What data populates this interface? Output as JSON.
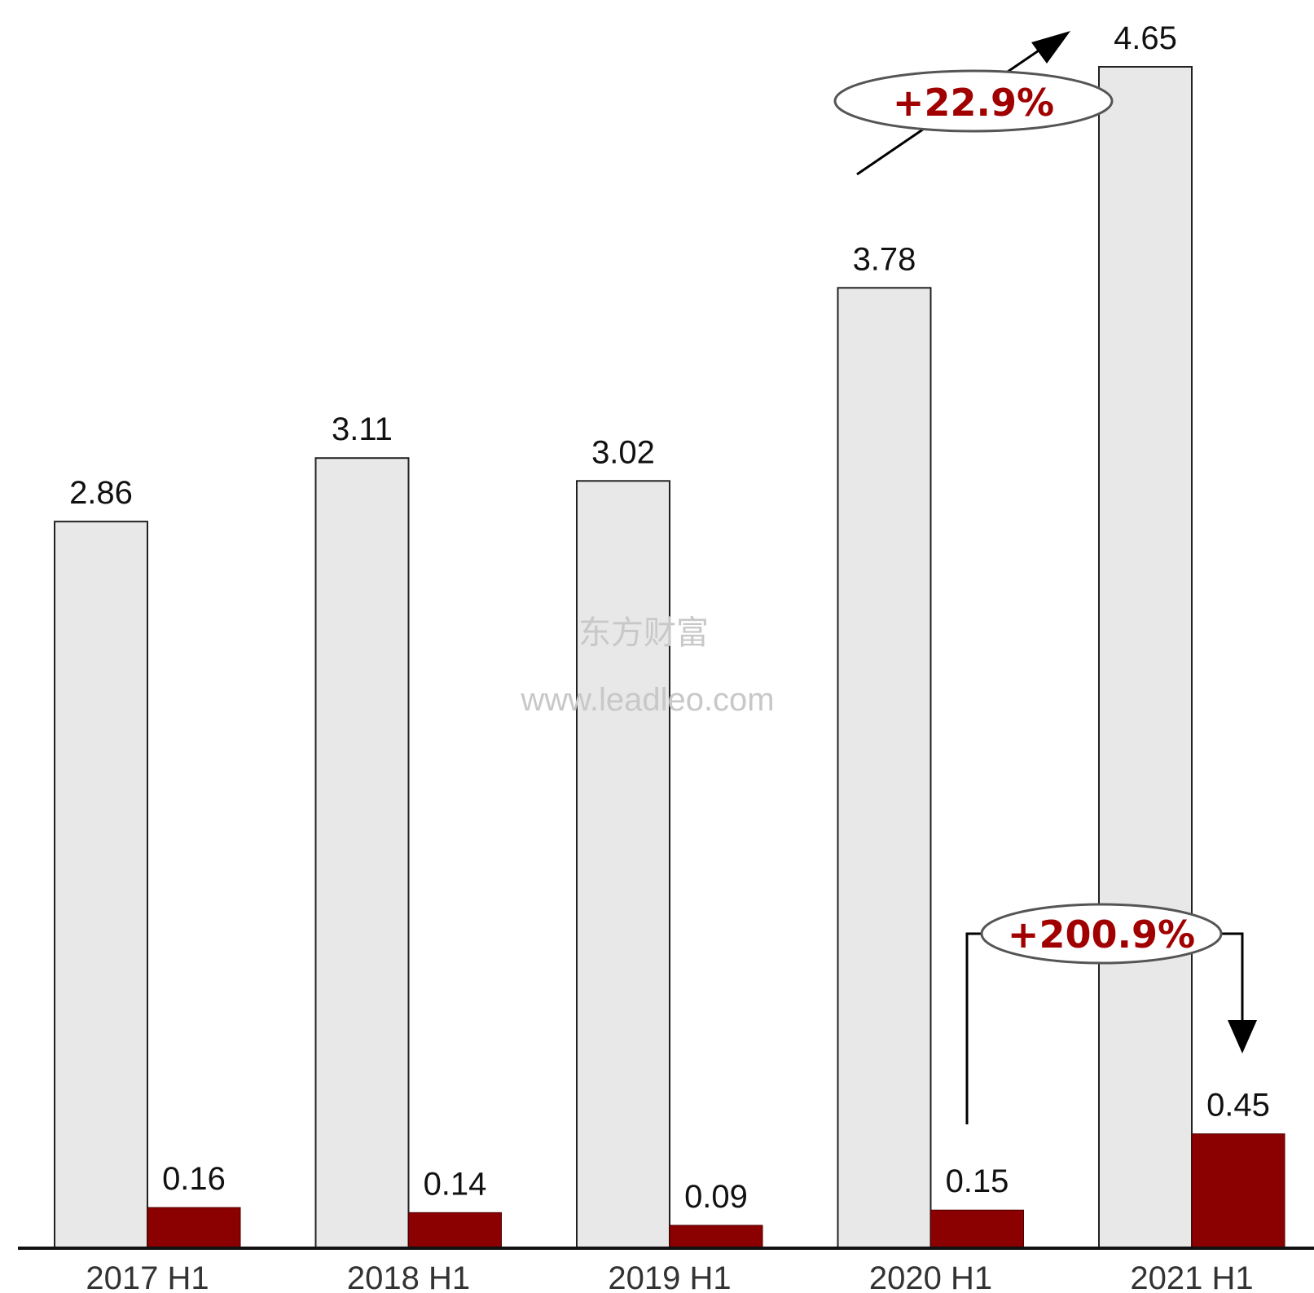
{
  "chart_data": {
    "type": "bar",
    "title": "",
    "xlabel": "",
    "ylabel": "",
    "ylim": [
      0,
      4.65
    ],
    "grid": false,
    "categories": [
      "2017 H1",
      "2018 H1",
      "2019 H1",
      "2020 H1",
      "2021 H1"
    ],
    "series": [
      {
        "values": [
          2.86,
          3.11,
          3.02,
          3.78,
          4.65
        ]
      },
      {
        "values": [
          0.16,
          0.14,
          0.09,
          0.15,
          0.45
        ]
      }
    ],
    "value_labels": [
      [
        "2.86",
        "3.11",
        "3.02",
        "3.78",
        "4.65"
      ],
      [
        "0.16",
        "0.14",
        "0.09",
        "0.15",
        "0.45"
      ]
    ],
    "annotations": [
      {
        "text": "+22.9%",
        "series": 0,
        "from": "2020 H1",
        "to": "2021 H1"
      },
      {
        "text": "+200.9%",
        "series": 1,
        "from": "2020 H1",
        "to": "2021 H1"
      }
    ]
  },
  "colors": {
    "series_0": "#e8e8e8",
    "series_1": "#8b0000",
    "annotation_text": "#a00000"
  },
  "watermark": {
    "brand": "东方财富",
    "url": "www.leadleo.com"
  }
}
